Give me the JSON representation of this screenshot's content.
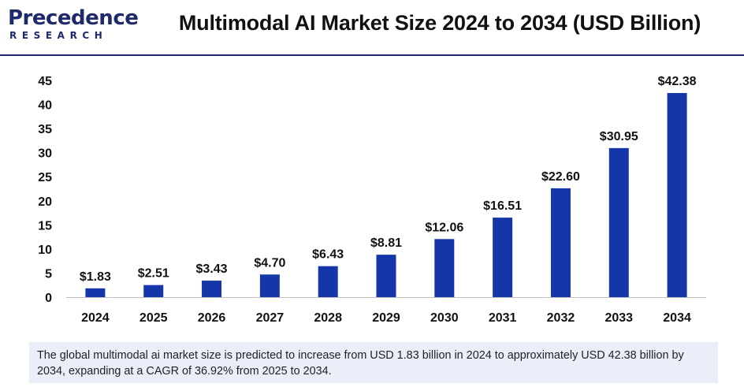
{
  "brand": {
    "logo_word": "Precedence",
    "logo_sub": "RESEARCH",
    "primary_color": "#1f2a6b",
    "accent_color": "#2b7bd6"
  },
  "title": "Multimodal AI Market Size 2024 to 2034 (USD Billion)",
  "chart_data": {
    "type": "bar",
    "categories": [
      "2024",
      "2025",
      "2026",
      "2027",
      "2028",
      "2029",
      "2030",
      "2031",
      "2032",
      "2033",
      "2034"
    ],
    "values": [
      1.83,
      2.51,
      3.43,
      4.7,
      6.43,
      8.81,
      12.06,
      16.51,
      22.6,
      30.95,
      42.38
    ],
    "data_labels": [
      "$1.83",
      "$2.51",
      "$3.43",
      "$4.70",
      "$6.43",
      "$8.81",
      "$12.06",
      "$16.51",
      "$22.60",
      "$30.95",
      "$42.38"
    ],
    "y_ticks": [
      0,
      5,
      10,
      15,
      20,
      25,
      30,
      35,
      40,
      45
    ],
    "ylim": [
      0,
      45
    ],
    "xlabel": "",
    "ylabel": "",
    "grid": false,
    "bar_color": "#1536a8"
  },
  "note": "The global multimodal ai market size is predicted to increase from USD 1.83 billion in 2024 to approximately USD 42.38 billion by 2034, expanding at a CAGR of 36.92% from 2025 to 2034."
}
